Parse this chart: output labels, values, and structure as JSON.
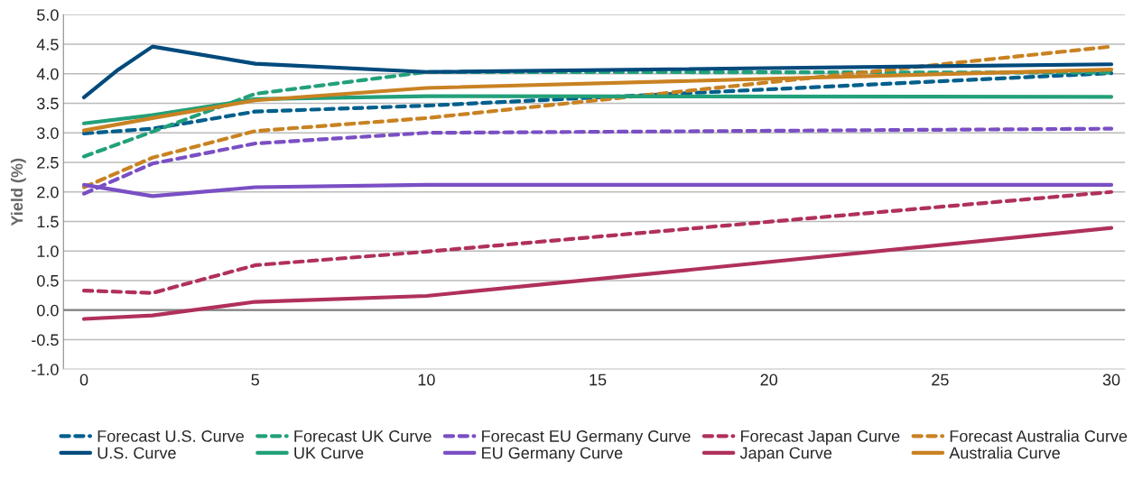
{
  "chart_data": {
    "type": "line",
    "ylabel": "Yield (%)",
    "xlim": [
      -0.6,
      30.4
    ],
    "xticks": [
      0,
      5,
      10,
      15,
      20,
      25,
      30
    ],
    "ylim": [
      -1.0,
      5.0
    ],
    "yticks": [
      {
        "value": -1.0,
        "label": "-1.0"
      },
      {
        "value": -0.5,
        "label": "-0.5"
      },
      {
        "value": 0.0,
        "label": "0.0"
      },
      {
        "value": 0.5,
        "label": "0.5"
      },
      {
        "value": 1.0,
        "label": "1.0"
      },
      {
        "value": 1.5,
        "label": "1.5"
      },
      {
        "value": 2.0,
        "label": "2.0"
      },
      {
        "value": 2.5,
        "label": "2.5"
      },
      {
        "value": 3.0,
        "label": "3.0"
      },
      {
        "value": 3.5,
        "label": "3.5"
      },
      {
        "value": 4.0,
        "label": "4.0"
      },
      {
        "value": 4.5,
        "label": "4.5"
      },
      {
        "value": 5.0,
        "label": "5.0"
      }
    ],
    "grid": "y",
    "legend": "bottom",
    "ref_lines": [
      {
        "axis": "y",
        "value": 0,
        "color": "#808080"
      }
    ],
    "series": [
      {
        "name": "Forecast U.S. Curve",
        "color": "#005f8c",
        "line_style": "dashed",
        "x": [
          0,
          2,
          5,
          10,
          15,
          30
        ],
        "values": [
          2.99,
          3.07,
          3.36,
          3.46,
          3.6,
          4.01
        ]
      },
      {
        "name": "Forecast UK Curve",
        "color": "#22a07a",
        "line_style": "dashed",
        "x": [
          0,
          2,
          5,
          10,
          30
        ],
        "values": [
          2.6,
          3.02,
          3.66,
          4.03,
          4.02
        ]
      },
      {
        "name": "Forecast EU Germany Curve",
        "color": "#7a4fc4",
        "line_style": "dashed",
        "x": [
          0,
          2,
          5,
          10,
          30
        ],
        "values": [
          1.97,
          2.48,
          2.82,
          3.0,
          3.07
        ]
      },
      {
        "name": "Forecast Japan Curve",
        "color": "#b0305c",
        "line_style": "dashed",
        "x": [
          0,
          2,
          5,
          10,
          30
        ],
        "values": [
          0.33,
          0.29,
          0.76,
          0.99,
          2.0
        ]
      },
      {
        "name": "Forecast Australia Curve",
        "color": "#c98222",
        "line_style": "dashed",
        "x": [
          0,
          2,
          5,
          10,
          30
        ],
        "values": [
          2.08,
          2.58,
          3.03,
          3.25,
          4.46
        ]
      },
      {
        "name": "U.S. Curve",
        "color": "#004a7c",
        "line_style": "solid",
        "x": [
          0,
          1,
          2,
          5,
          10,
          30
        ],
        "values": [
          3.6,
          4.07,
          4.46,
          4.17,
          4.03,
          4.16
        ]
      },
      {
        "name": "UK Curve",
        "color": "#22a07a",
        "line_style": "solid",
        "x": [
          0,
          2,
          5,
          10,
          30
        ],
        "values": [
          3.16,
          3.3,
          3.57,
          3.62,
          3.61
        ]
      },
      {
        "name": "EU Germany Curve",
        "color": "#7a4fc4",
        "line_style": "solid",
        "x": [
          0,
          2,
          5,
          10,
          30
        ],
        "values": [
          2.12,
          1.93,
          2.08,
          2.12,
          2.12
        ]
      },
      {
        "name": "Japan Curve",
        "color": "#b0305c",
        "line_style": "solid",
        "x": [
          0,
          2,
          5,
          10,
          30
        ],
        "values": [
          -0.15,
          -0.09,
          0.14,
          0.24,
          1.39
        ]
      },
      {
        "name": "Australia Curve",
        "color": "#c98222",
        "line_style": "solid",
        "x": [
          0,
          2,
          5,
          10,
          30
        ],
        "values": [
          3.04,
          3.25,
          3.55,
          3.76,
          4.07
        ]
      }
    ]
  }
}
